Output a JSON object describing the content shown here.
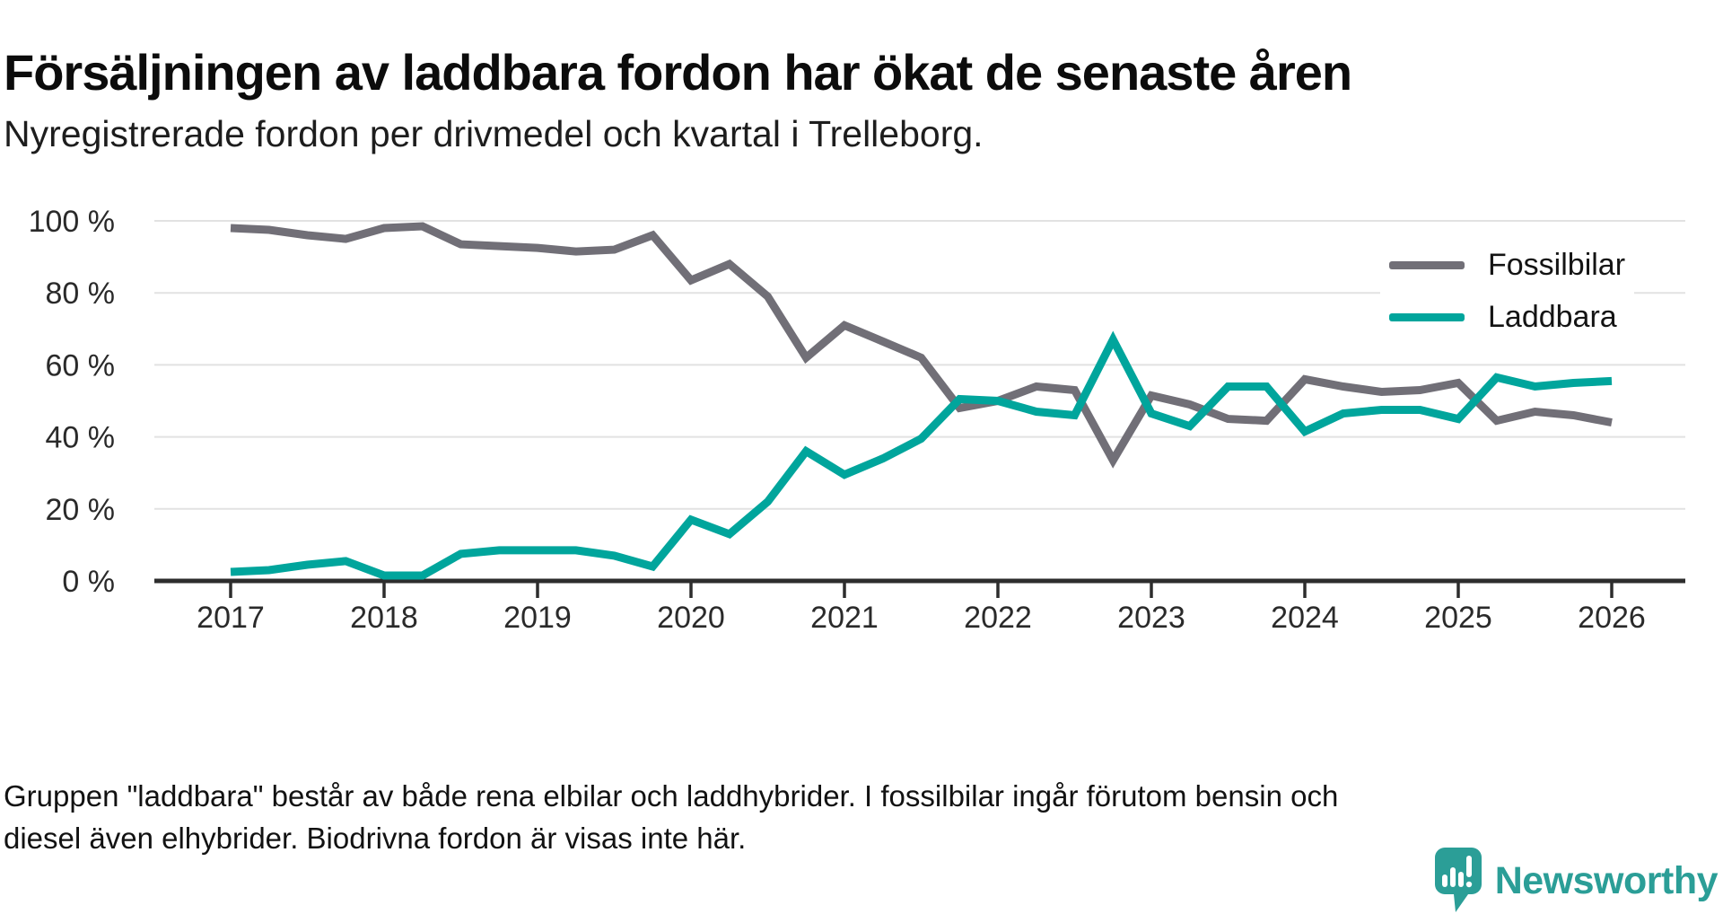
{
  "title": "Försäljningen av laddbara fordon har ökat de senaste åren",
  "subtitle": "Nyregistrerade fordon per drivmedel och kvartal i Trelleborg.",
  "footnote": "Gruppen \"laddbara\" består av både rena elbilar och laddhybrider. I fossilbilar ingår förutom bensin och diesel även elhybrider. Biodrivna fordon är visas inte här.",
  "logo": {
    "brand": "Newsworthy"
  },
  "colors": {
    "fossil": "#716f77",
    "laddbara": "#00a59c",
    "grid": "#e2e2e2",
    "axis": "#2d2d2d",
    "tick_text": "#2a2a2a",
    "logo_teal": "#2b9e97"
  },
  "legend": {
    "items": [
      {
        "label": "Fossilbilar"
      },
      {
        "label": "Laddbara"
      }
    ]
  },
  "chart_data": {
    "type": "line",
    "title": "Försäljningen av laddbara fordon har ökat de senaste åren",
    "subtitle": "Nyregistrerade fordon per drivmedel och kvartal i Trelleborg.",
    "xlabel": "",
    "ylabel": "",
    "ylim": [
      0,
      100
    ],
    "grid": true,
    "legend_position": "top-right",
    "x": [
      "2017 Q1",
      "2017 Q2",
      "2017 Q3",
      "2017 Q4",
      "2018 Q1",
      "2018 Q2",
      "2018 Q3",
      "2018 Q4",
      "2019 Q1",
      "2019 Q2",
      "2019 Q3",
      "2019 Q4",
      "2020 Q1",
      "2020 Q2",
      "2020 Q3",
      "2020 Q4",
      "2021 Q1",
      "2021 Q2",
      "2021 Q3",
      "2021 Q4",
      "2022 Q1",
      "2022 Q2",
      "2022 Q3",
      "2022 Q4",
      "2023 Q1",
      "2023 Q2",
      "2023 Q3",
      "2023 Q4",
      "2024 Q1",
      "2024 Q2",
      "2024 Q3",
      "2024 Q4",
      "2025 Q1",
      "2025 Q2",
      "2025 Q3",
      "2025 Q4",
      "2026 Q1"
    ],
    "series": [
      {
        "name": "Fossilbilar",
        "color": "#716f77",
        "values": [
          98,
          97.5,
          96,
          95,
          98,
          98.5,
          93.5,
          93,
          92.5,
          91.5,
          92,
          96,
          83.5,
          88,
          79,
          62,
          71,
          66.5,
          62,
          48,
          50,
          54,
          53,
          33.5,
          51.5,
          49,
          45,
          44.5,
          56,
          54,
          52.5,
          53,
          55,
          44.5,
          47,
          46,
          44
        ]
      },
      {
        "name": "Laddbara",
        "color": "#00a59c",
        "values": [
          2.5,
          3,
          4.5,
          5.5,
          1.5,
          1.5,
          7.5,
          8.5,
          8.5,
          8.5,
          7,
          4,
          17,
          13,
          22,
          36,
          29.5,
          34,
          39.5,
          50.5,
          50,
          47,
          46,
          67,
          46.5,
          43,
          54,
          54,
          41.5,
          46.5,
          47.5,
          47.5,
          45,
          56.5,
          54,
          55,
          55.5
        ]
      }
    ],
    "y_ticks": [
      {
        "value": 0,
        "label": "0 %"
      },
      {
        "value": 20,
        "label": "20 %"
      },
      {
        "value": 40,
        "label": "40 %"
      },
      {
        "value": 60,
        "label": "60 %"
      },
      {
        "value": 80,
        "label": "80 %"
      },
      {
        "value": 100,
        "label": "100 %"
      }
    ],
    "x_ticks": [
      {
        "q": 0,
        "label": "2017"
      },
      {
        "q": 4,
        "label": "2018"
      },
      {
        "q": 8,
        "label": "2019"
      },
      {
        "q": 12,
        "label": "2020"
      },
      {
        "q": 16,
        "label": "2021"
      },
      {
        "q": 20,
        "label": "2022"
      },
      {
        "q": 24,
        "label": "2023"
      },
      {
        "q": 28,
        "label": "2024"
      },
      {
        "q": 32,
        "label": "2025"
      },
      {
        "q": 36,
        "label": "2026"
      }
    ]
  }
}
